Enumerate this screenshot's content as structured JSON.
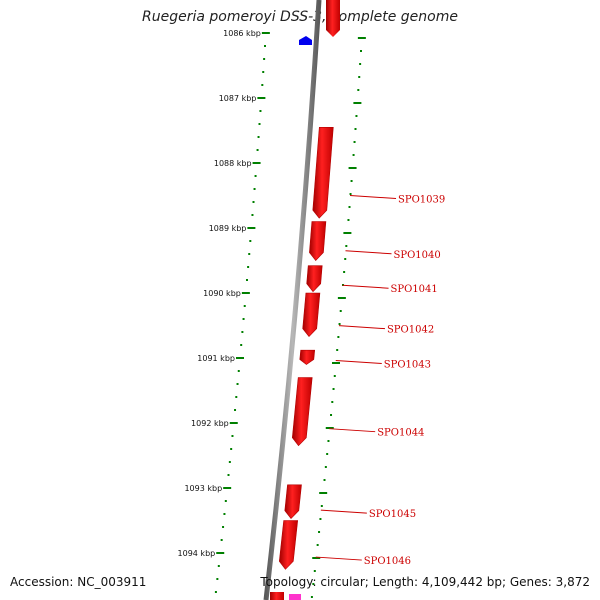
{
  "header": {
    "title": "Ruegeria pomeroyi DSS-3, complete genome"
  },
  "footer": {
    "accession": "Accession: NC_003911",
    "summary": "Topology: circular; Length: 4,109,442 bp; Genes: 3,872"
  },
  "kbp_labels": [
    "1086 kbp",
    "1087 kbp",
    "1088 kbp",
    "1089 kbp",
    "1090 kbp",
    "1091 kbp",
    "1092 kbp",
    "1093 kbp",
    "1094 kbp"
  ],
  "colors": {
    "backbone": "#808080",
    "gene": "#ff0000",
    "gene_dark": "#b30000",
    "tick": "#008000",
    "label": "#cc0000",
    "feature_blue": "#0000ee",
    "feature_pink": "#ff33cc"
  },
  "genes": [
    {
      "name": "SPO1039",
      "start_kbp": 1087.45,
      "end_kbp": 1088.85,
      "strand": "minus"
    },
    {
      "name": "SPO1040",
      "start_kbp": 1088.9,
      "end_kbp": 1089.5,
      "strand": "minus"
    },
    {
      "name": "SPO1041",
      "start_kbp": 1089.58,
      "end_kbp": 1089.98,
      "strand": "minus"
    },
    {
      "name": "SPO1042",
      "start_kbp": 1090.0,
      "end_kbp": 1090.67,
      "strand": "minus"
    },
    {
      "name": "SPO1043",
      "start_kbp": 1090.88,
      "end_kbp": 1091.1,
      "strand": "minus"
    },
    {
      "name": "SPO1044",
      "start_kbp": 1091.3,
      "end_kbp": 1092.35,
      "strand": "minus"
    },
    {
      "name": "SPO1045",
      "start_kbp": 1092.95,
      "end_kbp": 1093.47,
      "strand": "minus"
    },
    {
      "name": "SPO1046",
      "start_kbp": 1093.5,
      "end_kbp": 1094.25,
      "strand": "minus"
    }
  ]
}
